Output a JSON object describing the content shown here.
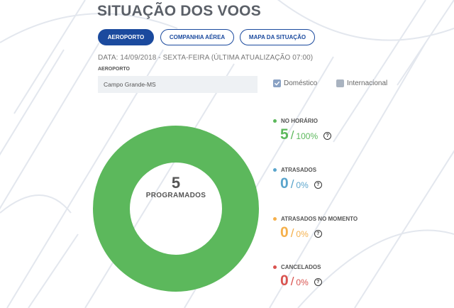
{
  "title": "SITUAÇÃO DOS VOOS",
  "tabs": [
    {
      "label": "AEROPORTO",
      "active": true
    },
    {
      "label": "COMPANHIA AÉREA",
      "active": false
    },
    {
      "label": "MAPA DA SITUAÇÃO",
      "active": false
    }
  ],
  "dateline": "DATA: 14/09/2018 - SEXTA-FEIRA (ÚLTIMA ATUALIZAÇÃO 07:00)",
  "airport_label": "AEROPORTO",
  "airport_value": "Campo Grande-MS",
  "filters": [
    {
      "label": "Doméstico",
      "checked": true
    },
    {
      "label": "Internacional",
      "checked": false
    }
  ],
  "summary": {
    "count": "5",
    "label": "PROGRAMADOS"
  },
  "stats": [
    {
      "label": "NO HORÁRIO",
      "count": "5",
      "percent": "100%",
      "color": "#5cb85c"
    },
    {
      "label": "ATRASADOS",
      "count": "0",
      "percent": "0%",
      "color": "#5aa5cc"
    },
    {
      "label": "ATRASADOS NO MOMENTO",
      "count": "0",
      "percent": "0%",
      "color": "#f5b04b"
    },
    {
      "label": "CANCELADOS",
      "count": "0",
      "percent": "0%",
      "color": "#d9534f"
    }
  ],
  "help_glyph": "?",
  "chart_data": {
    "type": "pie",
    "title": "",
    "categories": [
      "NO HORÁRIO",
      "ATRASADOS",
      "ATRASADOS NO MOMENTO",
      "CANCELADOS"
    ],
    "values": [
      5,
      0,
      0,
      0
    ],
    "colors": [
      "#5cb85c",
      "#5aa5cc",
      "#f5b04b",
      "#d9534f"
    ]
  },
  "colors": {
    "accent": "#1b4a9e",
    "background_lines": "#e3e7ee"
  }
}
